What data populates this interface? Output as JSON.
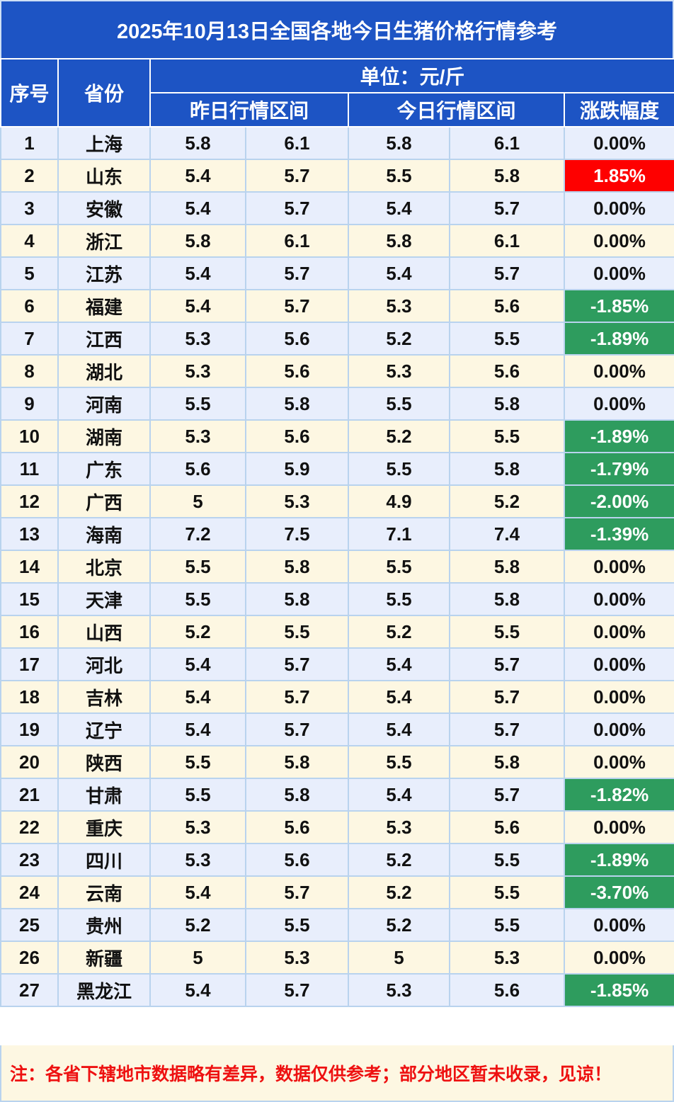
{
  "title": "2025年10月13日全国各地今日生猪价格行情参考",
  "headers": {
    "index": "序号",
    "province": "省份",
    "unit": "单位：元/斤",
    "yesterday": "昨日行情区间",
    "today": "今日行情区间",
    "change": "涨跌幅度"
  },
  "rows": [
    {
      "n": "1",
      "p": "上海",
      "y1": "5.8",
      "y2": "6.1",
      "t1": "5.8",
      "t2": "6.1",
      "c": "0.00%",
      "dir": "flat"
    },
    {
      "n": "2",
      "p": "山东",
      "y1": "5.4",
      "y2": "5.7",
      "t1": "5.5",
      "t2": "5.8",
      "c": "1.85%",
      "dir": "up"
    },
    {
      "n": "3",
      "p": "安徽",
      "y1": "5.4",
      "y2": "5.7",
      "t1": "5.4",
      "t2": "5.7",
      "c": "0.00%",
      "dir": "flat"
    },
    {
      "n": "4",
      "p": "浙江",
      "y1": "5.8",
      "y2": "6.1",
      "t1": "5.8",
      "t2": "6.1",
      "c": "0.00%",
      "dir": "flat"
    },
    {
      "n": "5",
      "p": "江苏",
      "y1": "5.4",
      "y2": "5.7",
      "t1": "5.4",
      "t2": "5.7",
      "c": "0.00%",
      "dir": "flat"
    },
    {
      "n": "6",
      "p": "福建",
      "y1": "5.4",
      "y2": "5.7",
      "t1": "5.3",
      "t2": "5.6",
      "c": "-1.85%",
      "dir": "down"
    },
    {
      "n": "7",
      "p": "江西",
      "y1": "5.3",
      "y2": "5.6",
      "t1": "5.2",
      "t2": "5.5",
      "c": "-1.89%",
      "dir": "down"
    },
    {
      "n": "8",
      "p": "湖北",
      "y1": "5.3",
      "y2": "5.6",
      "t1": "5.3",
      "t2": "5.6",
      "c": "0.00%",
      "dir": "flat"
    },
    {
      "n": "9",
      "p": "河南",
      "y1": "5.5",
      "y2": "5.8",
      "t1": "5.5",
      "t2": "5.8",
      "c": "0.00%",
      "dir": "flat"
    },
    {
      "n": "10",
      "p": "湖南",
      "y1": "5.3",
      "y2": "5.6",
      "t1": "5.2",
      "t2": "5.5",
      "c": "-1.89%",
      "dir": "down"
    },
    {
      "n": "11",
      "p": "广东",
      "y1": "5.6",
      "y2": "5.9",
      "t1": "5.5",
      "t2": "5.8",
      "c": "-1.79%",
      "dir": "down"
    },
    {
      "n": "12",
      "p": "广西",
      "y1": "5",
      "y2": "5.3",
      "t1": "4.9",
      "t2": "5.2",
      "c": "-2.00%",
      "dir": "down"
    },
    {
      "n": "13",
      "p": "海南",
      "y1": "7.2",
      "y2": "7.5",
      "t1": "7.1",
      "t2": "7.4",
      "c": "-1.39%",
      "dir": "down"
    },
    {
      "n": "14",
      "p": "北京",
      "y1": "5.5",
      "y2": "5.8",
      "t1": "5.5",
      "t2": "5.8",
      "c": "0.00%",
      "dir": "flat"
    },
    {
      "n": "15",
      "p": "天津",
      "y1": "5.5",
      "y2": "5.8",
      "t1": "5.5",
      "t2": "5.8",
      "c": "0.00%",
      "dir": "flat"
    },
    {
      "n": "16",
      "p": "山西",
      "y1": "5.2",
      "y2": "5.5",
      "t1": "5.2",
      "t2": "5.5",
      "c": "0.00%",
      "dir": "flat"
    },
    {
      "n": "17",
      "p": "河北",
      "y1": "5.4",
      "y2": "5.7",
      "t1": "5.4",
      "t2": "5.7",
      "c": "0.00%",
      "dir": "flat"
    },
    {
      "n": "18",
      "p": "吉林",
      "y1": "5.4",
      "y2": "5.7",
      "t1": "5.4",
      "t2": "5.7",
      "c": "0.00%",
      "dir": "flat"
    },
    {
      "n": "19",
      "p": "辽宁",
      "y1": "5.4",
      "y2": "5.7",
      "t1": "5.4",
      "t2": "5.7",
      "c": "0.00%",
      "dir": "flat"
    },
    {
      "n": "20",
      "p": "陕西",
      "y1": "5.5",
      "y2": "5.8",
      "t1": "5.5",
      "t2": "5.8",
      "c": "0.00%",
      "dir": "flat"
    },
    {
      "n": "21",
      "p": "甘肃",
      "y1": "5.5",
      "y2": "5.8",
      "t1": "5.4",
      "t2": "5.7",
      "c": "-1.82%",
      "dir": "down"
    },
    {
      "n": "22",
      "p": "重庆",
      "y1": "5.3",
      "y2": "5.6",
      "t1": "5.3",
      "t2": "5.6",
      "c": "0.00%",
      "dir": "flat"
    },
    {
      "n": "23",
      "p": "四川",
      "y1": "5.3",
      "y2": "5.6",
      "t1": "5.2",
      "t2": "5.5",
      "c": "-1.89%",
      "dir": "down"
    },
    {
      "n": "24",
      "p": "云南",
      "y1": "5.4",
      "y2": "5.7",
      "t1": "5.2",
      "t2": "5.5",
      "c": "-3.70%",
      "dir": "down"
    },
    {
      "n": "25",
      "p": "贵州",
      "y1": "5.2",
      "y2": "5.5",
      "t1": "5.2",
      "t2": "5.5",
      "c": "0.00%",
      "dir": "flat"
    },
    {
      "n": "26",
      "p": "新疆",
      "y1": "5",
      "y2": "5.3",
      "t1": "5",
      "t2": "5.3",
      "c": "0.00%",
      "dir": "flat"
    },
    {
      "n": "27",
      "p": "黑龙江",
      "y1": "5.4",
      "y2": "5.7",
      "t1": "5.3",
      "t2": "5.6",
      "c": "-1.85%",
      "dir": "down"
    }
  ],
  "colors": {
    "header_blue": "#1d54c4",
    "row_blue": "#e8eefc",
    "row_cream": "#fdf7e2",
    "up_red": "#fe0000",
    "down_green": "#2e9c5e"
  },
  "note": "注：各省下辖地市数据略有差异，数据仅供参考；部分地区暂未收录，见谅！"
}
